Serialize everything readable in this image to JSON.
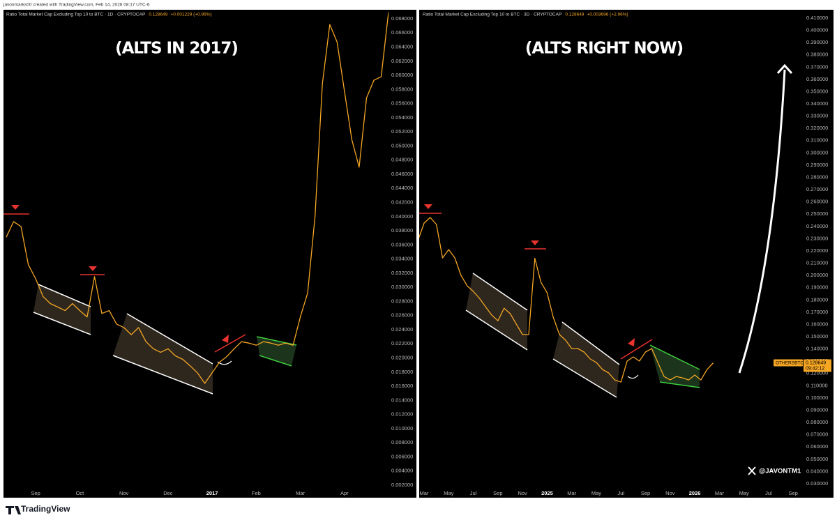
{
  "header": "javonmarks00 created with TradingView.com, Feb 14, 2026 08:17 UTC-6",
  "footer": "TradingView",
  "chart_data": [
    {
      "type": "line",
      "title": "Ratio Total Market Cap Excluding Top 10 to BTC · 1D · CRYPTOCAP",
      "price": "0.128649",
      "change": "+0.001229 (+0.96%)",
      "annotation": "(ALTS IN 2017)",
      "color": "#f5a623",
      "categories": [
        null,
        null,
        null,
        null,
        "Sep",
        null,
        null,
        null,
        null,
        null,
        "Oct",
        null,
        null,
        null,
        null,
        null,
        "Nov",
        null,
        null,
        null,
        null,
        null,
        "Dec",
        null,
        null,
        null,
        null,
        null,
        "2017",
        null,
        null,
        null,
        null,
        null,
        "Feb",
        null,
        null,
        null,
        null,
        null,
        "Mar",
        null,
        null,
        null,
        null,
        null,
        "Apr",
        null,
        null,
        null,
        null,
        null,
        null
      ],
      "values": [
        0.0371,
        0.0393,
        0.0386,
        0.0332,
        0.0312,
        0.0287,
        0.0277,
        0.0272,
        0.0267,
        0.0277,
        0.0267,
        0.0258,
        0.0315,
        0.0263,
        0.0267,
        0.0248,
        0.0243,
        0.0233,
        0.0243,
        0.0223,
        0.0213,
        0.0208,
        0.0213,
        0.0203,
        0.0198,
        0.0189,
        0.0179,
        0.0164,
        0.0179,
        0.0194,
        0.0202,
        0.0213,
        0.0223,
        0.0221,
        0.0218,
        0.0223,
        0.0221,
        0.0218,
        0.0221,
        0.0218,
        0.0258,
        0.0292,
        0.0401,
        0.0588,
        0.0672,
        0.0647,
        0.0578,
        0.0509,
        0.047,
        0.0568,
        0.0593,
        0.0598,
        0.069
      ],
      "ylim": [
        0.00022,
        0.06928
      ],
      "yticks": [
        {
          "value": 0.002,
          "label": "0.002000"
        },
        {
          "value": 0.004,
          "label": "0.004000"
        },
        {
          "value": 0.006,
          "label": "0.006000"
        },
        {
          "value": 0.008,
          "label": "0.008000"
        },
        {
          "value": 0.01,
          "label": "0.010000"
        },
        {
          "value": 0.012,
          "label": "0.012000"
        },
        {
          "value": 0.014,
          "label": "0.014000"
        },
        {
          "value": 0.016,
          "label": "0.016000"
        },
        {
          "value": 0.018,
          "label": "0.018000"
        },
        {
          "value": 0.02,
          "label": "0.020000"
        },
        {
          "value": 0.022,
          "label": "0.022000"
        },
        {
          "value": 0.024,
          "label": "0.024000"
        },
        {
          "value": 0.026,
          "label": "0.026000"
        },
        {
          "value": 0.028,
          "label": "0.028000"
        },
        {
          "value": 0.03,
          "label": "0.030000"
        },
        {
          "value": 0.032,
          "label": "0.032000"
        },
        {
          "value": 0.034,
          "label": "0.034000"
        },
        {
          "value": 0.036,
          "label": "0.036000"
        },
        {
          "value": 0.038,
          "label": "0.038000"
        },
        {
          "value": 0.04,
          "label": "0.040000"
        },
        {
          "value": 0.042,
          "label": "0.042000"
        },
        {
          "value": 0.044,
          "label": "0.044000"
        },
        {
          "value": 0.046,
          "label": "0.046000"
        },
        {
          "value": 0.048,
          "label": "0.048000"
        },
        {
          "value": 0.05,
          "label": "0.050000"
        },
        {
          "value": 0.052,
          "label": "0.052000"
        },
        {
          "value": 0.054,
          "label": "0.054000"
        },
        {
          "value": 0.056,
          "label": "0.056000"
        },
        {
          "value": 0.058,
          "label": "0.058000"
        },
        {
          "value": 0.06,
          "label": "0.060000"
        },
        {
          "value": 0.062,
          "label": "0.062000"
        },
        {
          "value": 0.064,
          "label": "0.064000"
        },
        {
          "value": 0.066,
          "label": "0.066000"
        },
        {
          "value": 0.068,
          "label": "0.068000"
        }
      ]
    },
    {
      "type": "line",
      "title": "Ratio Total Market Cap Excluding Top 10 to BTC · 3D · CRYPTOCAP",
      "price": "0.128649",
      "change": "+0.003696 (+2.96%)",
      "annotation": "(ALTS RIGHT NOW)",
      "symbol_tag": "OTHERSBTC",
      "countdown": "09:42:12",
      "watermark": "@JAVONTM1",
      "color": "#f5a623",
      "categories": [
        null,
        "Mar",
        null,
        null,
        null,
        "May",
        null,
        null,
        null,
        "Jul",
        null,
        null,
        null,
        "Sep",
        null,
        null,
        null,
        "Nov",
        null,
        null,
        null,
        "2025",
        null,
        null,
        null,
        "Mar",
        null,
        null,
        null,
        "May",
        null,
        null,
        null,
        "Jul",
        null,
        null,
        null,
        "Sep",
        null,
        null,
        null,
        "Nov",
        null,
        null,
        null,
        "2026",
        null,
        null,
        null,
        "Mar",
        null,
        null,
        null,
        "May",
        null,
        null,
        null,
        "Jul",
        null,
        null,
        null,
        "Sep",
        null
      ],
      "values": [
        0.2285,
        0.2427,
        0.2473,
        0.2416,
        0.2143,
        0.2211,
        0.2143,
        0.2,
        0.1915,
        0.187,
        0.1813,
        0.1744,
        0.1676,
        0.163,
        0.1733,
        0.1688,
        0.1602,
        0.1517,
        0.1517,
        0.214,
        0.1943,
        0.1858,
        0.1659,
        0.1517,
        0.1471,
        0.1403,
        0.1403,
        0.1375,
        0.1318,
        0.1289,
        0.1232,
        0.1204,
        0.1147,
        0.113,
        0.1301,
        0.1335,
        0.1301,
        0.1375,
        0.1403,
        0.1289,
        0.1175,
        0.1147,
        0.1175,
        0.1164,
        0.1147,
        0.1187,
        0.1147,
        0.1232,
        0.128649,
        null,
        null,
        null,
        null,
        null,
        null,
        null,
        null,
        null,
        null,
        null,
        null,
        null,
        null
      ],
      "ylim": [
        0.0186,
        0.4168
      ],
      "yticks": [
        {
          "value": 0.03,
          "label": "0.030000"
        },
        {
          "value": 0.04,
          "label": "0.040000"
        },
        {
          "value": 0.05,
          "label": "0.050000"
        },
        {
          "value": 0.06,
          "label": "0.060000"
        },
        {
          "value": 0.07,
          "label": "0.070000"
        },
        {
          "value": 0.08,
          "label": "0.080000"
        },
        {
          "value": 0.09,
          "label": "0.090000"
        },
        {
          "value": 0.1,
          "label": "0.100000"
        },
        {
          "value": 0.11,
          "label": "0.110000"
        },
        {
          "value": 0.12,
          "label": "0.120000"
        },
        {
          "value": 0.13,
          "label": "0.130000"
        },
        {
          "value": 0.14,
          "label": "0.140000"
        },
        {
          "value": 0.15,
          "label": "0.150000"
        },
        {
          "value": 0.16,
          "label": "0.160000"
        },
        {
          "value": 0.17,
          "label": "0.170000"
        },
        {
          "value": 0.18,
          "label": "0.180000"
        },
        {
          "value": 0.19,
          "label": "0.190000"
        },
        {
          "value": 0.2,
          "label": "0.200000"
        },
        {
          "value": 0.21,
          "label": "0.210000"
        },
        {
          "value": 0.22,
          "label": "0.220000"
        },
        {
          "value": 0.23,
          "label": "0.230000"
        },
        {
          "value": 0.24,
          "label": "0.240000"
        },
        {
          "value": 0.25,
          "label": "0.250000"
        },
        {
          "value": 0.26,
          "label": "0.260000"
        },
        {
          "value": 0.27,
          "label": "0.270000"
        },
        {
          "value": 0.28,
          "label": "0.280000"
        },
        {
          "value": 0.29,
          "label": "0.290000"
        },
        {
          "value": 0.3,
          "label": "0.300000"
        },
        {
          "value": 0.31,
          "label": "0.310000"
        },
        {
          "value": 0.32,
          "label": "0.320000"
        },
        {
          "value": 0.33,
          "label": "0.330000"
        },
        {
          "value": 0.34,
          "label": "0.340000"
        },
        {
          "value": 0.35,
          "label": "0.350000"
        },
        {
          "value": 0.36,
          "label": "0.360000"
        },
        {
          "value": 0.37,
          "label": "0.370000"
        },
        {
          "value": 0.38,
          "label": "0.380000"
        },
        {
          "value": 0.39,
          "label": "0.390000"
        },
        {
          "value": 0.4,
          "label": "0.400000"
        },
        {
          "value": 0.41,
          "label": "0.410000"
        }
      ]
    }
  ]
}
